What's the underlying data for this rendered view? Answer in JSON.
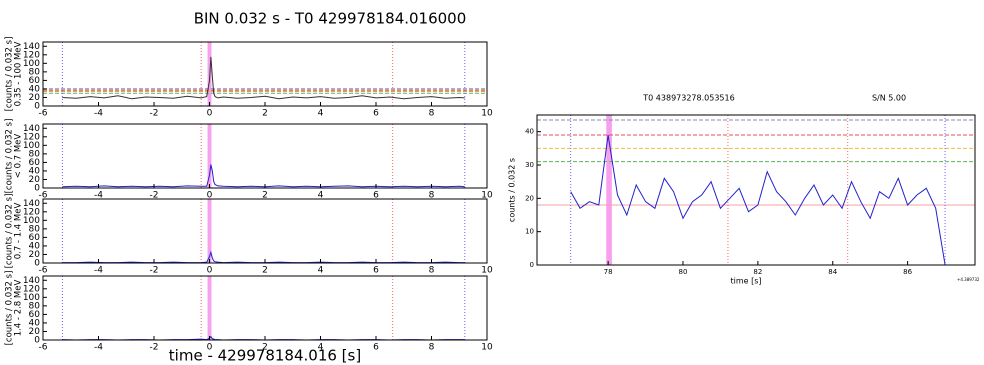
{
  "suptitle": "BIN 0.032 s -  T0 429978184.016000",
  "supxlabel": "time - 429978184.016 [s]",
  "chart_data": [
    {
      "type": "line",
      "ylabel": [
        "[counts / 0.032 s]",
        "0.35 - 100 MeV"
      ],
      "color": "#333333",
      "x": [
        -5.3,
        -4.8,
        -4.3,
        -3.8,
        -3.3,
        -2.8,
        -2.3,
        -1.8,
        -1.3,
        -0.8,
        -0.3,
        -0.1,
        0,
        0.05,
        0.1,
        0.15,
        0.2,
        0.3,
        0.5,
        1,
        1.5,
        2,
        2.5,
        3,
        3.5,
        4,
        4.5,
        5,
        5.5,
        6,
        6.5,
        7,
        7.5,
        8,
        8.5,
        9,
        9.2
      ],
      "values": [
        20,
        18,
        22,
        19,
        24,
        17,
        21,
        20,
        18,
        23,
        19,
        22,
        60,
        115,
        70,
        30,
        22,
        19,
        21,
        18,
        20,
        23,
        17,
        21,
        19,
        22,
        18,
        20,
        24,
        19,
        21,
        17,
        20,
        22,
        18,
        20,
        19
      ],
      "xlim": [
        -6,
        10
      ],
      "xticks": [
        -6,
        -4,
        -2,
        0,
        2,
        4,
        6,
        8,
        10
      ],
      "ylim": [
        0,
        150
      ],
      "yticks": [
        0,
        20,
        40,
        60,
        80,
        100,
        120,
        140
      ],
      "band": {
        "range": [
          -0.07,
          0.07
        ],
        "color": "#f7a1ee"
      },
      "vlines": [
        {
          "x": -5.3,
          "color": "#6666ff"
        },
        {
          "x": -0.3,
          "color": "#ff6666"
        },
        {
          "x": 6.6,
          "color": "#ff6666"
        },
        {
          "x": 9.2,
          "color": "#6666ff"
        }
      ],
      "hlines": [
        {
          "y": 30,
          "color": "#5cb85c",
          "dash": true
        },
        {
          "y": 34,
          "color": "#f0a030",
          "dash": true
        },
        {
          "y": 37,
          "color": "#e05050",
          "dash": true
        },
        {
          "y": 40,
          "color": "#7777aa",
          "dash": true
        }
      ]
    },
    {
      "type": "line",
      "ylabel": [
        "[counts / 0.032 s]",
        "< 0.7 MeV"
      ],
      "color": "#2222cc",
      "x": [
        -5.3,
        -4.8,
        -4.3,
        -3.8,
        -3.3,
        -2.8,
        -2.3,
        -1.8,
        -1.3,
        -0.8,
        -0.3,
        -0.1,
        0,
        0.05,
        0.1,
        0.15,
        0.2,
        0.3,
        0.5,
        1,
        1.5,
        2,
        2.5,
        3,
        3.5,
        4,
        4.5,
        5,
        5.5,
        6,
        6.5,
        7,
        7.5,
        8,
        8.5,
        9,
        9.2
      ],
      "values": [
        3,
        4,
        3,
        5,
        3,
        4,
        3,
        4,
        3,
        5,
        4,
        4,
        30,
        55,
        40,
        15,
        8,
        5,
        4,
        3,
        4,
        3,
        5,
        3,
        4,
        3,
        4,
        5,
        3,
        4,
        3,
        4,
        3,
        4,
        3,
        4,
        3
      ],
      "xlim": [
        -6,
        10
      ],
      "xticks": [
        -6,
        -4,
        -2,
        0,
        2,
        4,
        6,
        8,
        10
      ],
      "ylim": [
        0,
        150
      ],
      "yticks": [
        0,
        20,
        40,
        60,
        80,
        100,
        120,
        140
      ],
      "band": {
        "range": [
          -0.07,
          0.07
        ],
        "color": "#f7a1ee"
      },
      "vlines": [
        {
          "x": -5.3,
          "color": "#6666ff"
        },
        {
          "x": -0.3,
          "color": "#ff6666"
        },
        {
          "x": 6.6,
          "color": "#ff6666"
        },
        {
          "x": 9.2,
          "color": "#6666ff"
        }
      ]
    },
    {
      "type": "line",
      "ylabel": [
        "[counts / 0.032 s]",
        "0.7 - 1.4 MeV"
      ],
      "color": "#2222cc",
      "x": [
        -5.3,
        -4.8,
        -4.3,
        -3.8,
        -3.3,
        -2.8,
        -2.3,
        -1.8,
        -1.3,
        -0.8,
        -0.3,
        -0.1,
        0,
        0.05,
        0.1,
        0.15,
        0.2,
        0.3,
        0.5,
        1,
        1.5,
        2,
        2.5,
        3,
        3.5,
        4,
        4.5,
        5,
        5.5,
        6,
        6.5,
        7,
        7.5,
        8,
        8.5,
        9,
        9.2
      ],
      "values": [
        1,
        1,
        2,
        1,
        1,
        2,
        1,
        1,
        2,
        1,
        1,
        2,
        15,
        25,
        12,
        5,
        3,
        2,
        1,
        2,
        1,
        1,
        2,
        1,
        1,
        2,
        1,
        1,
        2,
        1,
        1,
        2,
        1,
        1,
        2,
        1,
        1
      ],
      "xlim": [
        -6,
        10
      ],
      "xticks": [
        -6,
        -4,
        -2,
        0,
        2,
        4,
        6,
        8,
        10
      ],
      "ylim": [
        0,
        150
      ],
      "yticks": [
        0,
        20,
        40,
        60,
        80,
        100,
        120,
        140
      ],
      "band": {
        "range": [
          -0.07,
          0.07
        ],
        "color": "#f7a1ee"
      },
      "vlines": [
        {
          "x": -5.3,
          "color": "#6666ff"
        },
        {
          "x": -0.3,
          "color": "#ff6666"
        },
        {
          "x": 6.6,
          "color": "#ff6666"
        },
        {
          "x": 9.2,
          "color": "#6666ff"
        }
      ]
    },
    {
      "type": "line",
      "ylabel": [
        "[counts / 0.032 s]",
        "1.4 - 2.8 MeV"
      ],
      "color": "#2222cc",
      "x": [
        -5.3,
        -4.8,
        -4.3,
        -3.8,
        -3.3,
        -2.8,
        -2.3,
        -1.8,
        -1.3,
        -0.8,
        -0.3,
        -0.1,
        0,
        0.05,
        0.1,
        0.15,
        0.2,
        0.3,
        0.5,
        1,
        1.5,
        2,
        2.5,
        3,
        3.5,
        4,
        4.5,
        5,
        5.5,
        6,
        6.5,
        7,
        7.5,
        8,
        8.5,
        9,
        9.2
      ],
      "values": [
        1,
        0,
        1,
        1,
        0,
        1,
        1,
        0,
        1,
        1,
        2,
        1,
        4,
        8,
        3,
        2,
        1,
        1,
        0,
        1,
        1,
        0,
        1,
        1,
        0,
        1,
        1,
        0,
        1,
        1,
        0,
        1,
        1,
        0,
        1,
        1,
        1
      ],
      "xlim": [
        -6,
        10
      ],
      "xticks": [
        -6,
        -4,
        -2,
        0,
        2,
        4,
        6,
        8,
        10
      ],
      "ylim": [
        0,
        150
      ],
      "yticks": [
        0,
        20,
        40,
        60,
        80,
        100,
        120,
        140
      ],
      "band": {
        "range": [
          -0.07,
          0.07
        ],
        "color": "#f7a1ee"
      },
      "vlines": [
        {
          "x": -5.3,
          "color": "#6666ff"
        },
        {
          "x": -0.3,
          "color": "#ff6666"
        },
        {
          "x": 6.6,
          "color": "#ff6666"
        },
        {
          "x": 9.2,
          "color": "#6666ff"
        }
      ]
    },
    {
      "type": "line",
      "title": "T0 438973278.053516",
      "annotation": "S/N 5.00",
      "ylabel": [
        "counts / 0.032 s"
      ],
      "xlabel": "time [s]",
      "offset_text": "+4.389732",
      "color": "#2222cc",
      "x": [
        77,
        77.25,
        77.5,
        77.75,
        78,
        78.25,
        78.5,
        78.75,
        79,
        79.25,
        79.5,
        79.75,
        80,
        80.25,
        80.5,
        80.75,
        81,
        81.25,
        81.5,
        81.75,
        82,
        82.25,
        82.5,
        82.75,
        83,
        83.25,
        83.5,
        83.75,
        84,
        84.25,
        84.5,
        84.75,
        85,
        85.25,
        85.5,
        85.75,
        86,
        86.25,
        86.5,
        86.75,
        87
      ],
      "values": [
        22,
        17,
        19,
        18,
        39,
        21,
        15,
        24,
        19,
        17,
        26,
        22,
        14,
        19,
        21,
        25,
        17,
        20,
        23,
        16,
        18,
        28,
        22,
        19,
        15,
        20,
        24,
        18,
        21,
        17,
        25,
        19,
        14,
        22,
        20,
        26,
        18,
        21,
        23,
        17,
        0
      ],
      "xlim": [
        76.1,
        87.8
      ],
      "xticks": [
        78,
        80,
        82,
        84,
        86
      ],
      "ylim": [
        0,
        45
      ],
      "yticks": [
        0,
        10,
        20,
        30,
        40
      ],
      "band": {
        "range": [
          77.95,
          78.1
        ],
        "color": "#f7a1ee"
      },
      "vlines": [
        {
          "x": 77,
          "color": "#6666ff"
        },
        {
          "x": 81.2,
          "color": "#ff6666"
        },
        {
          "x": 84.4,
          "color": "#ff6666"
        },
        {
          "x": 87,
          "color": "#6666ff"
        }
      ],
      "hlines": [
        {
          "y": 18,
          "color": "#f4a0a0",
          "dash": false
        },
        {
          "y": 31,
          "color": "#5cb85c",
          "dash": true
        },
        {
          "y": 35,
          "color": "#e8c040",
          "dash": true
        },
        {
          "y": 39,
          "color": "#e05050",
          "dash": true
        },
        {
          "y": 43.5,
          "color": "#8888aa",
          "dash": true
        }
      ]
    }
  ]
}
